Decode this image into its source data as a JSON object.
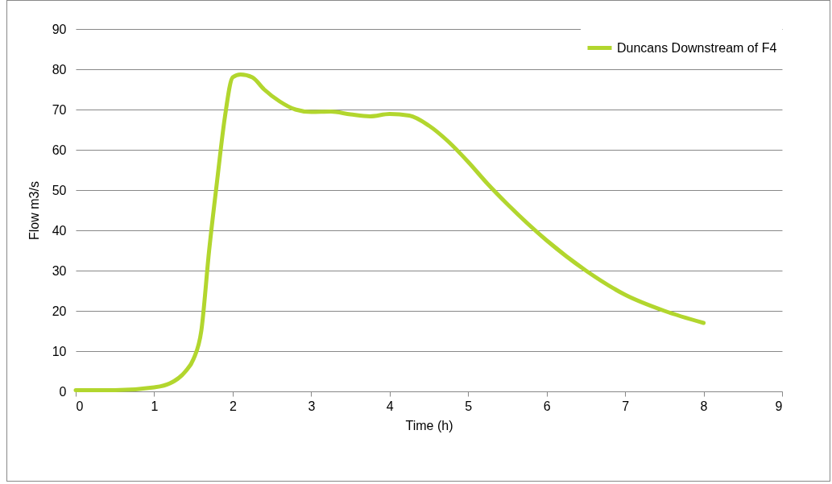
{
  "chart_data": {
    "type": "line",
    "xlabel": "Time (h)",
    "ylabel": "Flow m3/s",
    "xlim": [
      0,
      9
    ],
    "xticks": [
      0,
      1,
      2,
      3,
      4,
      5,
      6,
      7,
      8,
      9
    ],
    "ylim": [
      0,
      90
    ],
    "yticks": [
      0,
      10,
      20,
      30,
      40,
      50,
      60,
      70,
      80,
      90
    ],
    "grid": "y",
    "legend": "top right",
    "marker": "none",
    "line_style": "solid",
    "series": [
      {
        "name": "Duncans Downstream of F4",
        "color": "#b2d62e",
        "x": [
          0,
          0.5,
          1.0,
          1.2,
          1.4,
          1.5,
          1.6,
          1.7,
          1.8,
          1.9,
          2.0,
          2.1,
          2.25,
          2.4,
          2.6,
          2.8,
          3.0,
          3.25,
          3.5,
          3.75,
          4.0,
          4.25,
          4.5,
          4.75,
          5.0,
          5.25,
          5.5,
          6.0,
          6.5,
          7.0,
          7.5,
          8.0
        ],
        "values": [
          0.3,
          0.3,
          1,
          2,
          5,
          8,
          15,
          35,
          52,
          68,
          78,
          78.7,
          78,
          75,
          72,
          70,
          69.4,
          69.5,
          68.8,
          68.3,
          68.9,
          68.5,
          66,
          62,
          57,
          51.5,
          46.5,
          37.5,
          30,
          24,
          20,
          17
        ]
      }
    ]
  }
}
